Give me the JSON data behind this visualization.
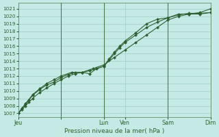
{
  "title": "Pression niveau de la mer( hPa )",
  "background_color": "#c5eae5",
  "grid_color": "#9ecec8",
  "line_color": "#2d6030",
  "ylim": [
    1006.5,
    1021.8
  ],
  "yticks": [
    1007,
    1008,
    1009,
    1010,
    1011,
    1012,
    1013,
    1014,
    1015,
    1016,
    1017,
    1018,
    1019,
    1020,
    1021
  ],
  "xlim": [
    0,
    108
  ],
  "xtick_positions": [
    0,
    24,
    48,
    60,
    84,
    108
  ],
  "xtick_labels": [
    "Jeu",
    "",
    "Lun",
    "Ven",
    "Sam",
    "Dim"
  ],
  "vline_positions": [
    24,
    48,
    84,
    108
  ],
  "series_a_x": [
    0,
    2,
    4,
    6,
    8,
    12,
    16,
    20,
    24,
    28,
    32,
    36,
    40,
    44,
    48,
    51,
    54,
    57,
    60,
    66,
    72,
    78,
    84,
    90,
    96,
    102,
    108
  ],
  "series_a_y": [
    1007.0,
    1007.5,
    1008.0,
    1008.5,
    1009.0,
    1009.8,
    1010.4,
    1011.0,
    1011.5,
    1012.0,
    1012.3,
    1012.5,
    1012.7,
    1013.0,
    1013.3,
    1014.1,
    1015.0,
    1015.8,
    1016.5,
    1017.5,
    1018.5,
    1019.2,
    1019.8,
    1020.2,
    1020.4,
    1020.4,
    1020.5
  ],
  "series_b_x": [
    0,
    2,
    4,
    6,
    8,
    12,
    16,
    20,
    24,
    28,
    32,
    36,
    40,
    44,
    48,
    51,
    54,
    57,
    60,
    66,
    72,
    78,
    84,
    90,
    96,
    102,
    108
  ],
  "series_b_y": [
    1007.0,
    1007.7,
    1008.2,
    1008.8,
    1009.4,
    1010.2,
    1010.8,
    1011.2,
    1011.8,
    1012.2,
    1012.5,
    1012.5,
    1012.3,
    1013.0,
    1013.3,
    1014.3,
    1015.2,
    1016.0,
    1016.7,
    1017.8,
    1019.0,
    1019.6,
    1019.8,
    1020.3,
    1020.3,
    1020.3,
    1020.5
  ],
  "series_c_x": [
    0,
    4,
    8,
    12,
    16,
    20,
    24,
    30,
    36,
    42,
    48,
    54,
    60,
    66,
    72,
    78,
    84,
    90,
    96,
    102,
    108
  ],
  "series_c_y": [
    1007.0,
    1008.3,
    1009.5,
    1010.3,
    1011.0,
    1011.5,
    1012.0,
    1012.5,
    1012.5,
    1013.0,
    1013.5,
    1014.5,
    1015.5,
    1016.5,
    1017.5,
    1018.5,
    1019.5,
    1020.0,
    1020.3,
    1020.5,
    1021.0
  ]
}
